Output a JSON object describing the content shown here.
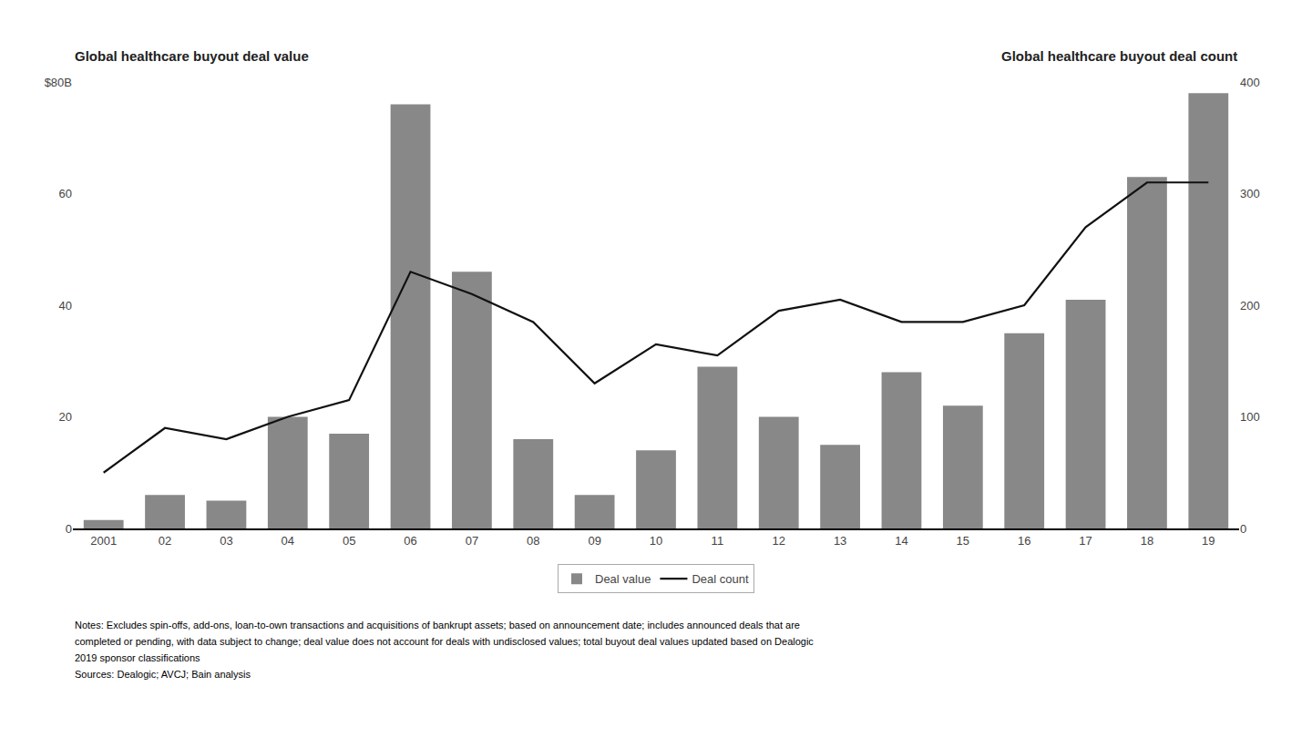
{
  "chart_data": {
    "type": "bar",
    "ylabel": "Global healthcare buyout deal value",
    "y2label": "Global healthcare buyout deal count",
    "categories": [
      "2001",
      "02",
      "03",
      "04",
      "05",
      "06",
      "07",
      "08",
      "09",
      "10",
      "11",
      "12",
      "13",
      "14",
      "15",
      "16",
      "17",
      "18",
      "19"
    ],
    "series": [
      {
        "name": "Deal value",
        "type": "bar",
        "color": "#888888",
        "values": [
          1.5,
          6,
          5,
          20,
          17,
          76,
          46,
          16,
          6,
          14,
          29,
          20,
          15,
          28,
          22,
          35,
          41,
          63,
          78
        ]
      },
      {
        "name": "Deal count",
        "type": "line",
        "axis": "y2",
        "color": "#111111",
        "values": [
          50,
          90,
          80,
          100,
          115,
          230,
          210,
          185,
          130,
          165,
          155,
          195,
          205,
          185,
          185,
          200,
          270,
          310,
          310
        ]
      }
    ],
    "ylim": [
      0,
      80
    ],
    "yticks": [
      0,
      20,
      40,
      60,
      {
        "value": 80,
        "label": "$80B"
      }
    ],
    "y2lim": [
      0,
      400
    ],
    "y2ticks": [
      0,
      100,
      200,
      300,
      400
    ],
    "grid": false,
    "legend": "bottom",
    "annotations": [
      "Notes: Excludes spin-offs, add-ons, loan-to-own transactions and acquisitions of bankrupt assets; based on announcement date; includes announced deals that are",
      "completed or pending, with data subject to change; deal value does not account for deals with undisclosed values; total buyout deal values updated based on Dealogic",
      "2019 sponsor classifications",
      "Sources: Dealogic; AVCJ; Bain analysis"
    ]
  }
}
